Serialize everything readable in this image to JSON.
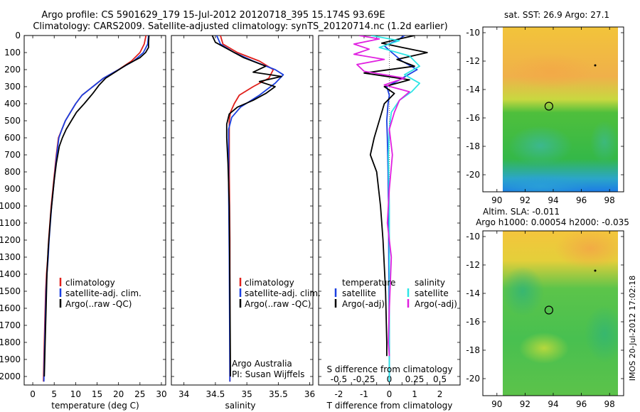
{
  "header": {
    "line1": "Argo profile: CS 5901629_179 15-Jul-2012 20120718_395 15.174S 93.69E",
    "line2": "Climatology: CARS2009. Satellite-adjusted climatology: synTS_20120714.nc (1.2d earlier)"
  },
  "right_top_title": "sat. SST: 26.9 Argo: 27.1",
  "right_bottom_title1": "Altim. SLA: -0.011",
  "right_bottom_title2": "Argo h1000: 0.00054 h2000: -0.035",
  "side_label": "IMOS 20-Jul-2012 17:02:18",
  "credit": {
    "line1": "Argo Australia",
    "line2": "PI: Susan Wijffels"
  },
  "colors": {
    "climatology": "#e0201b",
    "satellite": "#1a3fe0",
    "argo": "#000000",
    "sal_satellite": "#2ee6e6",
    "sal_argo": "#e020e0"
  },
  "chart_data": [
    {
      "type": "line",
      "xlabel": "temperature (deg C)",
      "xticks": [
        0,
        5,
        10,
        15,
        20,
        25,
        30
      ],
      "xlim": [
        -2,
        31
      ],
      "ylim": [
        0,
        2050
      ],
      "yticks": [
        0,
        100,
        200,
        300,
        400,
        500,
        600,
        700,
        800,
        900,
        1000,
        1100,
        1200,
        1300,
        1400,
        1500,
        1600,
        1700,
        1800,
        1900,
        2000
      ],
      "legend": [
        "climatology",
        "satellite-adj. clim.",
        "Argo(..raw -QC)"
      ],
      "series": [
        {
          "name": "climatology",
          "color": "red",
          "x": [
            26.4,
            26.0,
            25.0,
            23.0,
            20.0,
            16.5,
            14.0,
            11.5,
            10.0,
            8.8,
            7.6,
            6.8,
            6.0,
            5.5,
            5.1,
            4.7,
            4.3,
            4.0,
            3.7,
            3.5,
            3.2,
            3.0,
            2.8,
            2.6,
            2.5
          ],
          "y": [
            0,
            50,
            100,
            150,
            200,
            250,
            300,
            350,
            400,
            450,
            500,
            550,
            600,
            700,
            800,
            900,
            1000,
            1100,
            1200,
            1300,
            1400,
            1500,
            1700,
            1900,
            2030
          ]
        },
        {
          "name": "satellite-adj. clim.",
          "color": "blue",
          "x": [
            27.0,
            26.8,
            25.8,
            23.5,
            20.0,
            16.5,
            14.0,
            11.5,
            10.0,
            8.8,
            7.6,
            6.8,
            6.1,
            5.6,
            5.2,
            4.8,
            4.4,
            4.1,
            3.8,
            3.6,
            3.3,
            3.1,
            2.9,
            2.7,
            2.6
          ],
          "y": [
            0,
            50,
            100,
            150,
            200,
            250,
            300,
            350,
            400,
            450,
            500,
            550,
            600,
            700,
            800,
            900,
            1000,
            1100,
            1200,
            1300,
            1400,
            1500,
            1700,
            1900,
            2030
          ]
        },
        {
          "name": "Argo(..raw -QC)",
          "color": "black",
          "x": [
            27.1,
            27.0,
            27.0,
            26.3,
            25.0,
            22.0,
            19.5,
            17.0,
            15.5,
            14.0,
            12.0,
            10.2,
            9.0,
            7.8,
            6.9,
            6.2,
            5.5,
            5.0,
            4.6,
            4.2,
            3.9,
            3.6,
            3.3,
            3.1,
            2.9,
            2.7
          ],
          "y": [
            0,
            40,
            70,
            100,
            130,
            170,
            210,
            250,
            290,
            340,
            400,
            450,
            500,
            550,
            600,
            650,
            750,
            850,
            950,
            1050,
            1150,
            1250,
            1400,
            1600,
            1800,
            2000
          ]
        }
      ]
    },
    {
      "type": "line",
      "xlabel": "salinity",
      "xticks": [
        34,
        34.5,
        35,
        35.5,
        36
      ],
      "xlim": [
        33.8,
        36.05
      ],
      "ylim": [
        0,
        2050
      ],
      "legend": [
        "climatology",
        "satellite-adj. clim.",
        "Argo(..raw -QC)"
      ],
      "series": [
        {
          "name": "climatology",
          "color": "red",
          "x": [
            34.58,
            34.62,
            34.85,
            35.2,
            35.42,
            35.35,
            35.1,
            34.88,
            34.8,
            34.74,
            34.72,
            34.72,
            34.72,
            34.73,
            34.73
          ],
          "y": [
            0,
            50,
            100,
            150,
            200,
            250,
            300,
            350,
            400,
            450,
            500,
            600,
            800,
            1200,
            2030
          ]
        },
        {
          "name": "satellite-adj. clim.",
          "color": "blue",
          "x": [
            34.52,
            34.58,
            34.8,
            35.1,
            35.45,
            35.58,
            35.45,
            35.2,
            34.9,
            34.76,
            34.71,
            34.71,
            34.71,
            34.72,
            34.73
          ],
          "y": [
            0,
            50,
            100,
            150,
            200,
            230,
            280,
            350,
            420,
            480,
            550,
            650,
            900,
            1300,
            2030
          ]
        },
        {
          "name": "Argo(..raw -QC)",
          "color": "black",
          "x": [
            34.45,
            34.5,
            34.7,
            34.95,
            35.3,
            35.1,
            35.55,
            35.2,
            35.45,
            35.3,
            35.1,
            34.85,
            34.72,
            34.68,
            34.68,
            34.7,
            34.72,
            34.73,
            34.74
          ],
          "y": [
            0,
            40,
            80,
            130,
            180,
            215,
            240,
            270,
            300,
            340,
            380,
            420,
            460,
            520,
            600,
            750,
            1000,
            1500,
            2000
          ]
        }
      ]
    },
    {
      "type": "line",
      "xlabel": "T difference from climatology",
      "xlabel2": "S difference from climatology",
      "xticks": [
        -2,
        -1.5,
        -1,
        -0.5,
        0,
        0.5,
        1,
        1.5,
        2
      ],
      "xtick_labels": [
        "-2",
        "",
        "-1",
        "",
        "0",
        "",
        "1",
        "",
        "2"
      ],
      "s_xticks": [
        -0.5,
        -0.25,
        0,
        0.25,
        0.5
      ],
      "s_xtick_labels": [
        "-0.5",
        "-0.25",
        "0",
        "0.25",
        "0.5"
      ],
      "xlim": [
        -2.8,
        2.8
      ],
      "s_xlim": [
        -0.7,
        0.7
      ],
      "ylim": [
        0,
        2050
      ],
      "legend_t_title": "temperature",
      "legend_s_title": "salinity",
      "legend": [
        "satellite",
        "Argo(-adj)",
        "satellite",
        "Argo(-adj)"
      ],
      "series": [
        {
          "name": "satellite",
          "color": "blue",
          "quantity": "T",
          "x": [
            0.6,
            0.3,
            -0.2,
            0.1,
            0.5,
            1.1,
            0.4,
            -0.1,
            0.0,
            -0.05,
            -0.1,
            -0.08,
            -0.05,
            -0.03,
            -0.02,
            0.0,
            0.0
          ],
          "y": [
            0,
            30,
            60,
            100,
            150,
            200,
            260,
            300,
            350,
            400,
            500,
            600,
            800,
            1000,
            1400,
            1800,
            2030
          ]
        },
        {
          "name": "Argo(-adj)",
          "color": "black",
          "quantity": "T",
          "x": [
            1.0,
            0.4,
            -0.3,
            0.5,
            1.5,
            0.3,
            1.0,
            -1.0,
            0.8,
            -0.2,
            0.2,
            -0.2,
            -0.4,
            -0.6,
            -0.75,
            -0.5,
            -0.35,
            -0.25,
            -0.15,
            -0.1,
            -0.1
          ],
          "y": [
            0,
            20,
            45,
            70,
            100,
            140,
            180,
            220,
            260,
            300,
            340,
            400,
            500,
            600,
            700,
            800,
            1000,
            1200,
            1500,
            1800,
            1880
          ]
        },
        {
          "name": "satellite",
          "color": "cyan",
          "quantity": "S",
          "x": [
            -0.18,
            0.1,
            -0.1,
            0.2,
            0.3,
            0.15,
            0.3,
            0.22,
            0.1,
            0.02,
            0.0,
            -0.01,
            0.0,
            0.0,
            0.0
          ],
          "y": [
            0,
            30,
            70,
            120,
            180,
            230,
            280,
            330,
            380,
            450,
            550,
            700,
            1000,
            1500,
            2030
          ]
        },
        {
          "name": "Argo(-adj)",
          "color": "magenta",
          "quantity": "S",
          "x": [
            -0.3,
            -0.1,
            -0.35,
            -0.2,
            -0.35,
            -0.05,
            -0.32,
            -0.25,
            0.15,
            -0.05,
            0.2,
            0.1,
            0.05,
            0.0,
            0.03,
            0.0,
            -0.02,
            0.02,
            0.0,
            -0.01,
            0.0
          ],
          "y": [
            0,
            20,
            50,
            80,
            110,
            140,
            170,
            210,
            250,
            290,
            330,
            380,
            450,
            550,
            700,
            900,
            1100,
            1300,
            1600,
            1800,
            1880
          ]
        }
      ]
    },
    {
      "type": "heatmap",
      "title": "sat. SST: 26.9 Argo: 27.1",
      "xticks": [
        90,
        92,
        94,
        96,
        98
      ],
      "yticks": [
        -10,
        -12,
        -14,
        -16,
        -18,
        -20
      ],
      "xlim": [
        89,
        99
      ],
      "ylim": [
        -21.2,
        -9.6
      ],
      "argo_position": [
        93.69,
        -15.174
      ]
    },
    {
      "type": "heatmap",
      "title": "Altim. SLA: -0.011",
      "xticks": [
        90,
        92,
        94,
        96,
        98
      ],
      "yticks": [
        -10,
        -12,
        -14,
        -16,
        -18,
        -20
      ],
      "xlim": [
        89,
        99
      ],
      "ylim": [
        -21.2,
        -9.6
      ],
      "argo_position": [
        93.69,
        -15.174
      ]
    }
  ]
}
